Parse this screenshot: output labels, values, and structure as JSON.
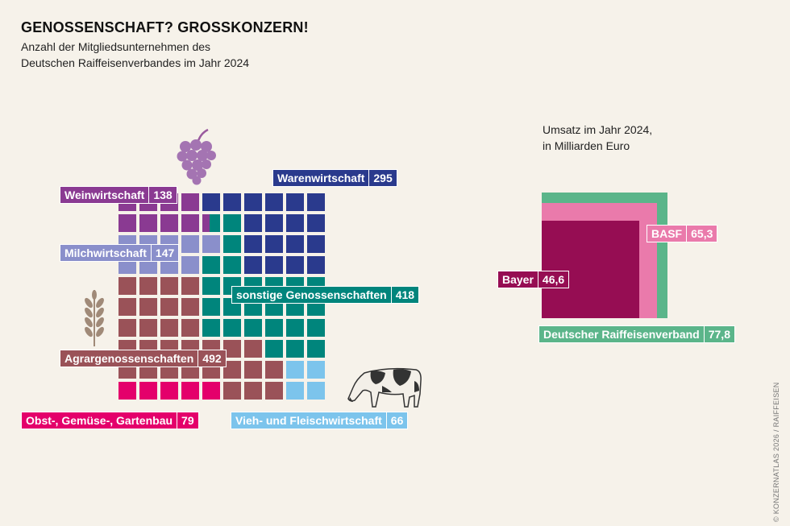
{
  "title": "GENOSSENSCHAFT? GROSSKONZERN!",
  "subtitle": [
    "Anzahl der Mitgliedsunternehmen des",
    "Deutschen Raiffeisenverbandes im Jahr 2024"
  ],
  "credit": "© KONZERNATLAS 2026 / RAIFFEISEN",
  "chart_data": [
    {
      "type": "waffle",
      "title": "Anzahl der Mitgliedsunternehmen des Deutschen Raiffeisenverbandes im Jahr 2024",
      "categories": [
        "Weinwirtschaft",
        "Warenwirtschaft",
        "Milchwirtschaft",
        "sonstige Genossenschaften",
        "Agrargenossenschaften",
        "Obst-, Gemüse-, Gartenbau",
        "Vieh- und Fleischwirtschaft"
      ],
      "values": [
        138,
        295,
        147,
        418,
        492,
        79,
        66
      ],
      "value_labels": [
        "138",
        "295",
        "147",
        "418",
        "492",
        "79",
        "66"
      ],
      "colors": [
        "#8a3a92",
        "#2a3a8d",
        "#8a8fcb",
        "#00857c",
        "#9a5258",
        "#e4006b",
        "#7cc4ec"
      ],
      "icons": [
        "grapes-icon",
        "wheat-icon",
        "cow-icon"
      ]
    },
    {
      "type": "nested-square",
      "title": "Umsatz im Jahr 2024, in Milliarden Euro",
      "subtitle": [
        "Umsatz im Jahr 2024,",
        "in Milliarden Euro"
      ],
      "categories": [
        "Deutscher Raiffeisenverband",
        "BASF",
        "Bayer"
      ],
      "values": [
        77.8,
        65.3,
        46.6
      ],
      "value_labels": [
        "77,8",
        "65,3",
        "46,6"
      ],
      "colors": [
        "#5bb58a",
        "#ea7aab",
        "#960d53"
      ]
    }
  ]
}
